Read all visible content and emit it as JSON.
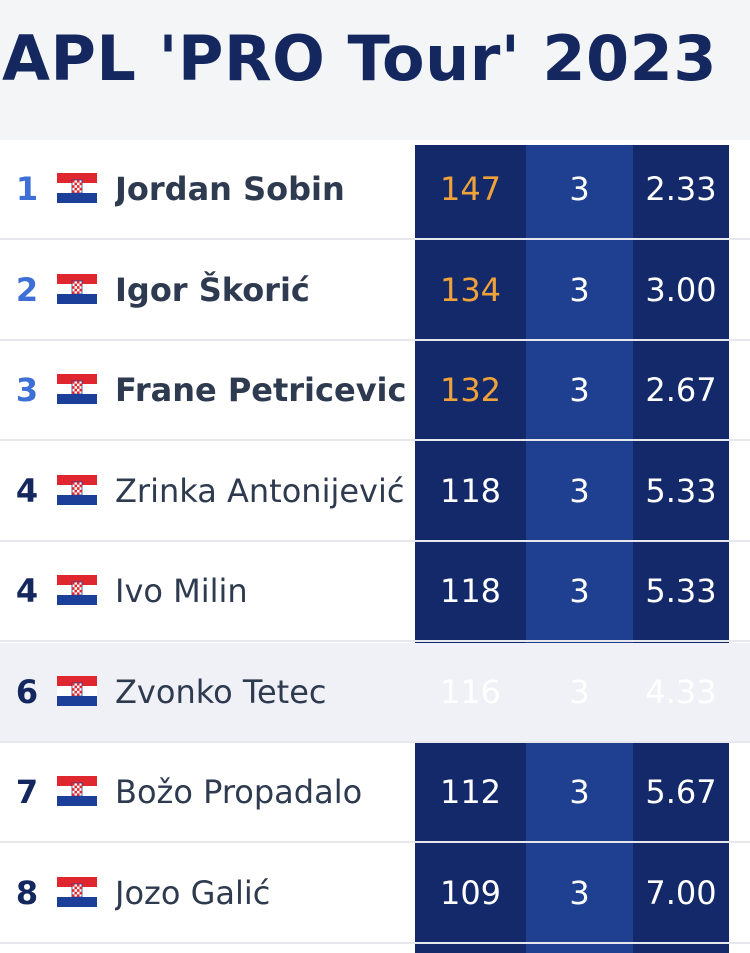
{
  "header": {
    "title": "APL 'PRO Tour' 2023"
  },
  "table": {
    "rows": [
      [
        1,
        "Jordan Sobin",
        147,
        3,
        "2.33"
      ],
      [
        2,
        "Igor Škorić",
        134,
        3,
        "3.00"
      ],
      [
        3,
        "Frane Petricevic",
        132,
        3,
        "2.67"
      ],
      [
        4,
        "Zrinka Antonijević",
        118,
        3,
        "5.33"
      ],
      [
        4,
        "Ivo Milin",
        118,
        3,
        "5.33"
      ],
      [
        6,
        "Zvonko Tetec",
        116,
        3,
        "4.33"
      ],
      [
        7,
        "Božo Propadalo",
        112,
        3,
        "5.67"
      ],
      [
        8,
        "Jozo Galić",
        109,
        3,
        "7.00"
      ]
    ]
  }
}
